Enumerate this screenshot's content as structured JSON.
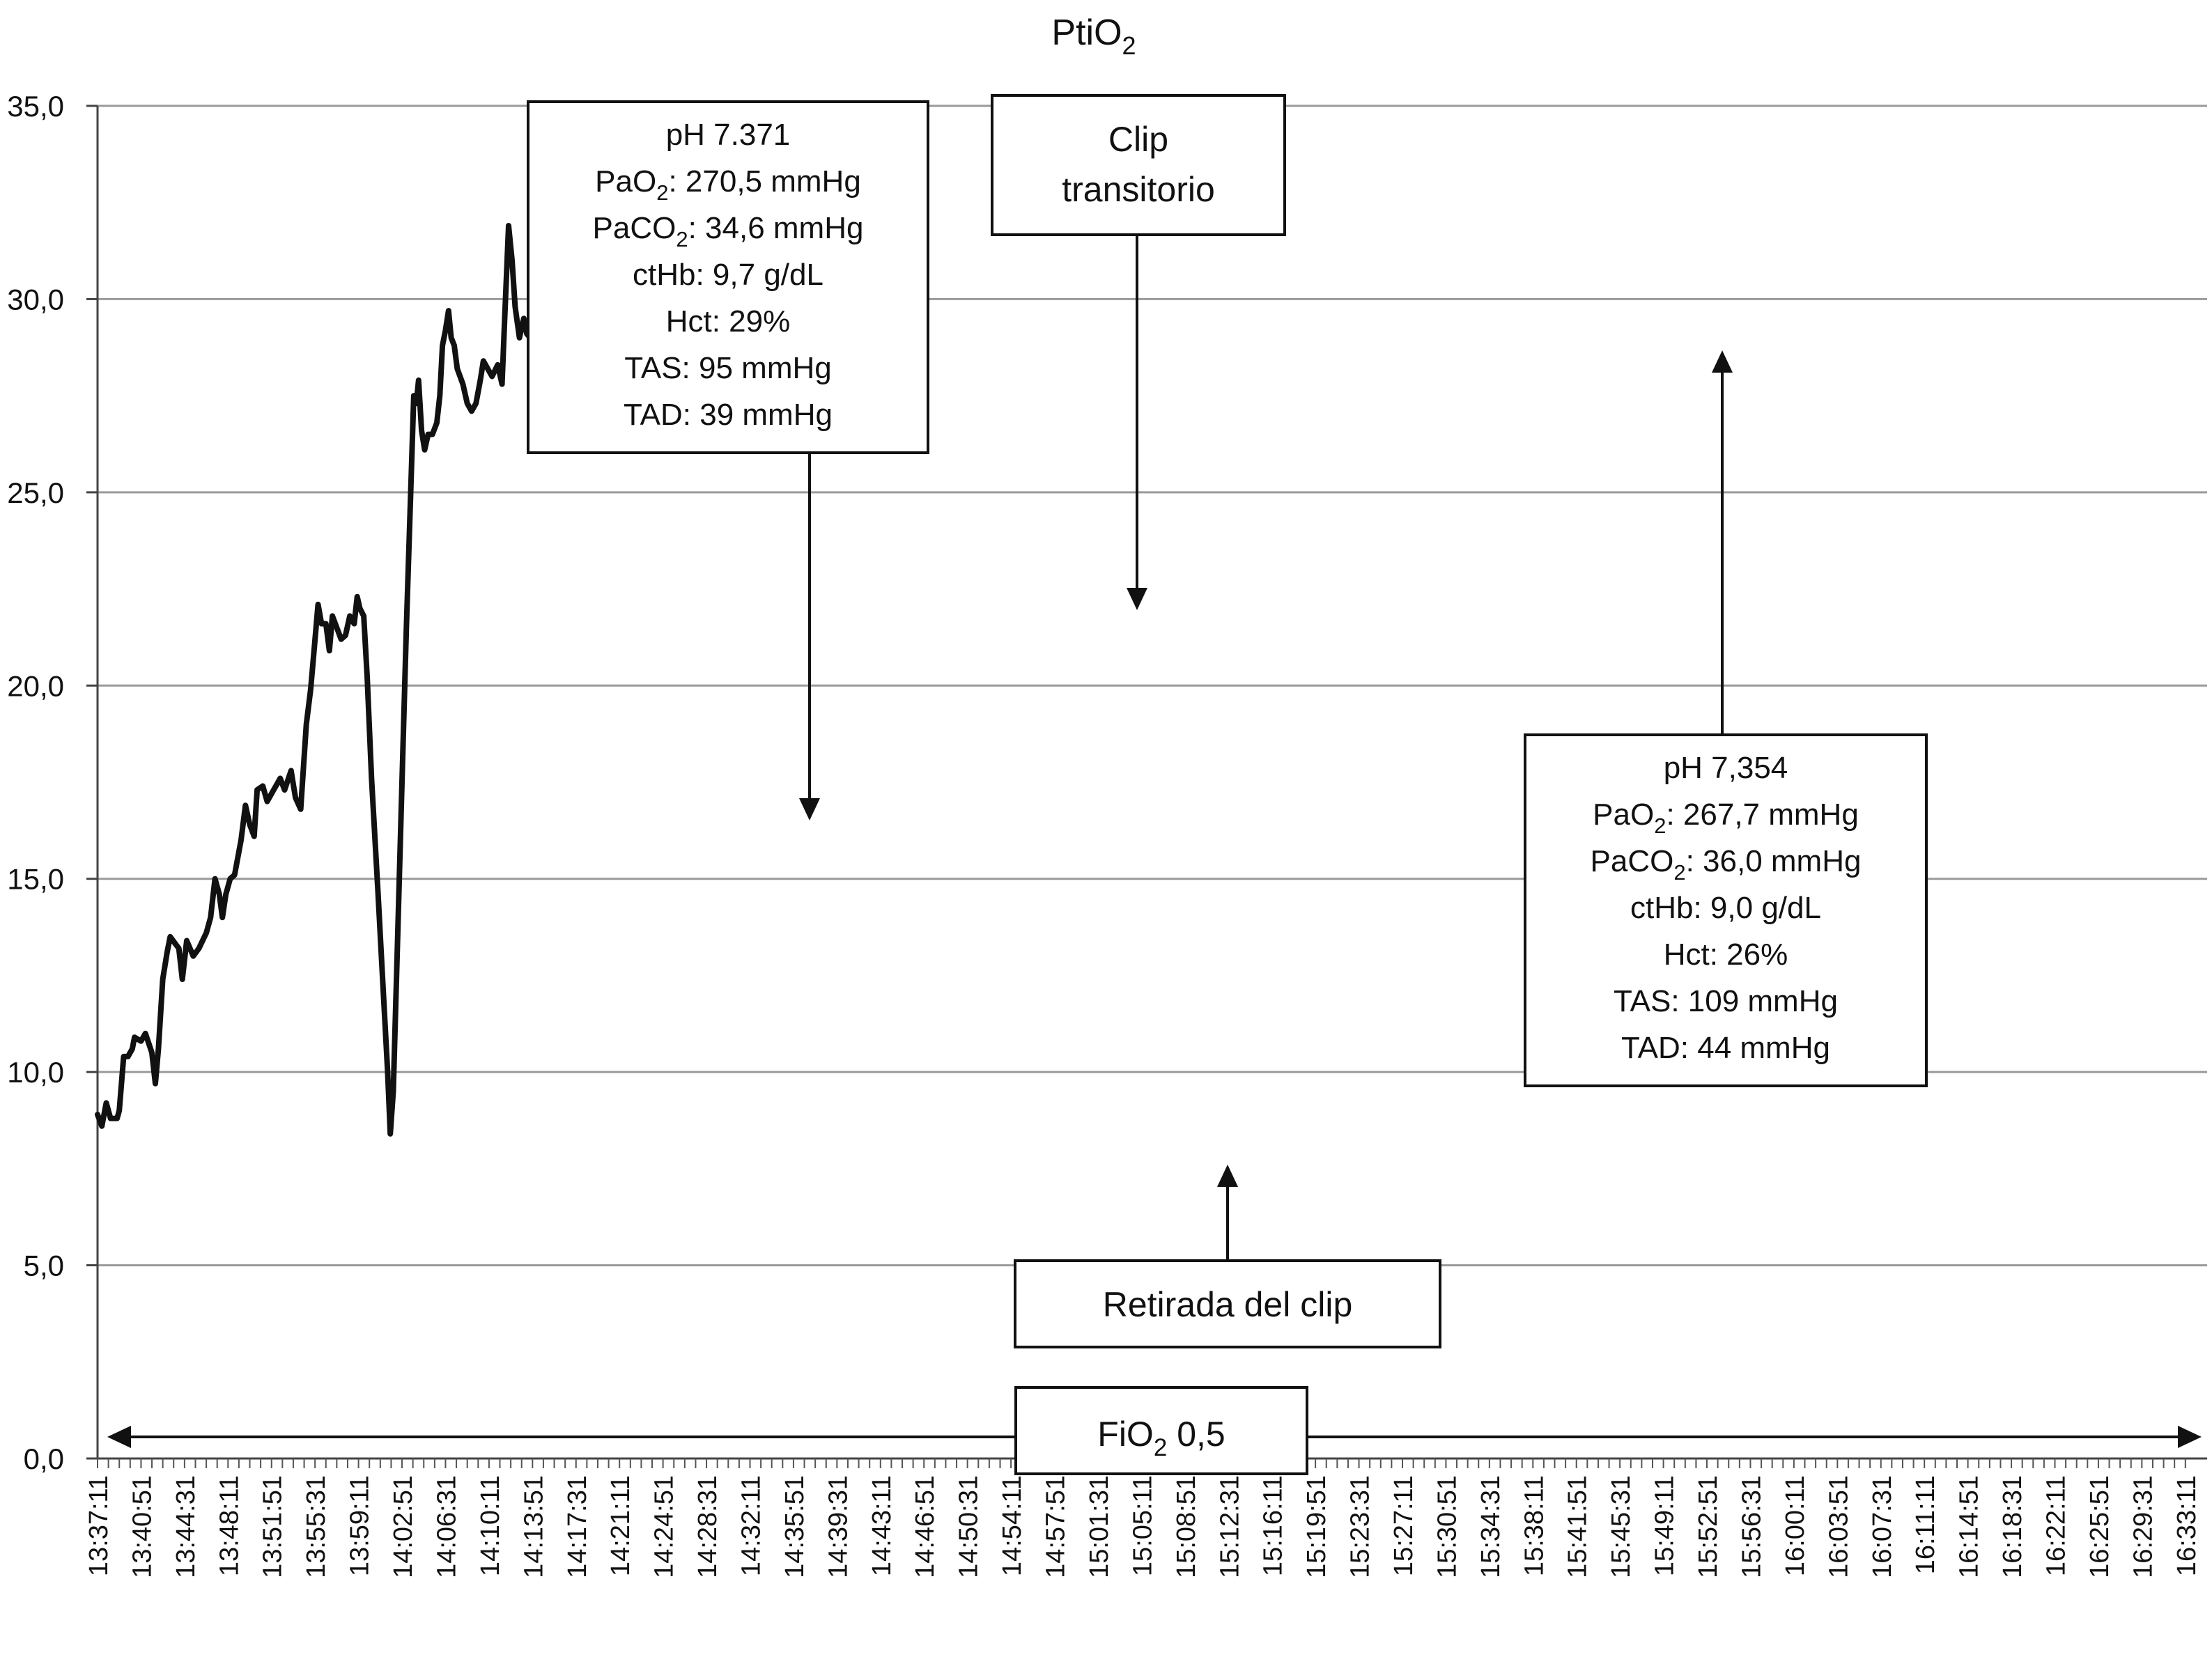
{
  "chart_data": {
    "type": "line",
    "title_main": "PtiO",
    "title_sub": "2",
    "ylim": [
      0,
      35
    ],
    "y_ticks": [
      "0,0",
      "5,0",
      "10,0",
      "15,0",
      "20,0",
      "25,0",
      "30,0",
      "35,0"
    ],
    "y_tick_values": [
      0,
      5,
      10,
      15,
      20,
      25,
      30,
      35
    ],
    "grid": true,
    "x_ticks": [
      "13:37:11",
      "13:40:51",
      "13:44:31",
      "13:48:11",
      "13:51:51",
      "13:55:31",
      "13:59:11",
      "14:02:51",
      "14:06:31",
      "14:10:11",
      "14:13:51",
      "14:17:31",
      "14:21:11",
      "14:24:51",
      "14:28:31",
      "14:32:11",
      "14:35:51",
      "14:39:31",
      "14:43:11",
      "14:46:51",
      "14:50:31",
      "14:54:11",
      "14:57:51",
      "15:01:31",
      "15:05:11",
      "15:08:51",
      "15:12:31",
      "15:16:11",
      "15:19:51",
      "15:23:31",
      "15:27:11",
      "15:30:51",
      "15:34:31",
      "15:38:11",
      "15:41:51",
      "15:45:31",
      "15:49:11",
      "15:52:51",
      "15:56:31",
      "16:00:11",
      "16:03:51",
      "16:07:31",
      "16:11:11",
      "16:14:51",
      "16:18:31",
      "16:22:11",
      "16:25:51",
      "16:29:31",
      "16:33:11"
    ],
    "series": [
      {
        "values": [
          [
            0,
            8.9
          ],
          [
            0.1,
            8.6
          ],
          [
            0.2,
            9.2
          ],
          [
            0.3,
            8.8
          ],
          [
            0.45,
            8.8
          ],
          [
            0.5,
            9.0
          ],
          [
            0.6,
            10.4
          ],
          [
            0.7,
            10.4
          ],
          [
            0.8,
            10.6
          ],
          [
            0.85,
            10.9
          ],
          [
            1.0,
            10.8
          ],
          [
            1.1,
            11.0
          ],
          [
            1.25,
            10.5
          ],
          [
            1.33,
            9.7
          ],
          [
            1.4,
            10.6
          ],
          [
            1.5,
            12.4
          ],
          [
            1.6,
            13.1
          ],
          [
            1.67,
            13.5
          ],
          [
            1.8,
            13.3
          ],
          [
            1.87,
            13.2
          ],
          [
            1.95,
            12.4
          ],
          [
            2.05,
            13.4
          ],
          [
            2.2,
            13.0
          ],
          [
            2.33,
            13.2
          ],
          [
            2.5,
            13.6
          ],
          [
            2.6,
            14.0
          ],
          [
            2.7,
            15.0
          ],
          [
            2.8,
            14.6
          ],
          [
            2.87,
            14.0
          ],
          [
            2.95,
            14.6
          ],
          [
            3.05,
            15.0
          ],
          [
            3.15,
            15.1
          ],
          [
            3.3,
            16.0
          ],
          [
            3.4,
            16.9
          ],
          [
            3.5,
            16.4
          ],
          [
            3.6,
            16.1
          ],
          [
            3.67,
            17.3
          ],
          [
            3.8,
            17.4
          ],
          [
            3.9,
            17.0
          ],
          [
            4.0,
            17.2
          ],
          [
            4.1,
            17.4
          ],
          [
            4.2,
            17.6
          ],
          [
            4.3,
            17.3
          ],
          [
            4.45,
            17.8
          ],
          [
            4.55,
            17.1
          ],
          [
            4.67,
            16.8
          ],
          [
            4.8,
            19.0
          ],
          [
            4.9,
            19.9
          ],
          [
            5.0,
            21.2
          ],
          [
            5.07,
            22.1
          ],
          [
            5.15,
            21.6
          ],
          [
            5.25,
            21.6
          ],
          [
            5.33,
            20.9
          ],
          [
            5.4,
            21.8
          ],
          [
            5.5,
            21.5
          ],
          [
            5.6,
            21.2
          ],
          [
            5.7,
            21.3
          ],
          [
            5.8,
            21.8
          ],
          [
            5.9,
            21.6
          ],
          [
            5.97,
            22.3
          ],
          [
            6.03,
            22.0
          ],
          [
            6.12,
            21.8
          ],
          [
            6.2,
            20.2
          ],
          [
            6.3,
            17.6
          ],
          [
            6.45,
            14.6
          ],
          [
            6.55,
            12.5
          ],
          [
            6.67,
            10.0
          ],
          [
            6.73,
            8.4
          ],
          [
            6.8,
            9.5
          ],
          [
            6.9,
            13.5
          ],
          [
            7.0,
            17.5
          ],
          [
            7.1,
            21.5
          ],
          [
            7.2,
            25.0
          ],
          [
            7.27,
            27.5
          ],
          [
            7.33,
            27.3
          ],
          [
            7.38,
            27.9
          ],
          [
            7.45,
            26.6
          ],
          [
            7.52,
            26.1
          ],
          [
            7.6,
            26.5
          ],
          [
            7.7,
            26.5
          ],
          [
            7.8,
            26.8
          ],
          [
            7.87,
            27.5
          ],
          [
            7.93,
            28.8
          ],
          [
            8.0,
            29.2
          ],
          [
            8.07,
            29.7
          ],
          [
            8.13,
            29.0
          ],
          [
            8.2,
            28.8
          ],
          [
            8.27,
            28.2
          ],
          [
            8.4,
            27.8
          ],
          [
            8.5,
            27.3
          ],
          [
            8.6,
            27.1
          ],
          [
            8.7,
            27.3
          ],
          [
            8.8,
            27.9
          ],
          [
            8.87,
            28.4
          ],
          [
            8.97,
            28.2
          ],
          [
            9.07,
            28.0
          ],
          [
            9.2,
            28.3
          ],
          [
            9.3,
            27.8
          ],
          [
            9.36,
            29.5
          ],
          [
            9.45,
            31.9
          ],
          [
            9.53,
            31.0
          ],
          [
            9.6,
            29.8
          ],
          [
            9.7,
            29.0
          ],
          [
            9.8,
            29.5
          ],
          [
            9.87,
            29.1
          ],
          [
            9.95,
            29.0
          ],
          [
            10.07,
            28.4
          ],
          [
            10.15,
            29.0
          ],
          [
            10.25,
            29.5
          ],
          [
            10.35,
            29.8
          ],
          [
            10.47,
            30.1
          ],
          [
            10.55,
            29.6
          ],
          [
            10.65,
            29.5
          ],
          [
            10.73,
            29.1
          ],
          [
            10.8,
            28.8
          ],
          [
            10.9,
            29.2
          ],
          [
            11.0,
            29.2
          ],
          [
            11.1,
            29.0
          ],
          [
            11.2,
            28.8
          ],
          [
            11.27,
            28.6
          ],
          [
            11.4,
            28.6
          ],
          [
            11.5,
            28.7
          ],
          [
            11.6,
            29.8
          ],
          [
            11.73,
            30.9
          ],
          [
            11.8,
            30.8
          ],
          [
            11.87,
            30.0
          ],
          [
            11.93,
            30.0
          ],
          [
            12.0,
            29.5
          ],
          [
            12.07,
            28.5
          ],
          [
            12.13,
            28.8
          ],
          [
            12.2,
            29.9
          ],
          [
            12.3,
            30.5
          ],
          [
            12.37,
            29.8
          ],
          [
            12.47,
            29.5
          ],
          [
            12.55,
            29.8
          ],
          [
            12.63,
            31.2
          ],
          [
            12.7,
            30.6
          ],
          [
            12.8,
            31.3
          ],
          [
            12.87,
            30.6
          ],
          [
            12.97,
            31.0
          ],
          [
            13.07,
            31.5
          ],
          [
            13.15,
            31.0
          ],
          [
            13.25,
            31.8
          ],
          [
            13.35,
            31.1
          ],
          [
            13.43,
            31.5
          ],
          [
            13.52,
            30.3
          ],
          [
            13.6,
            30.3
          ]
        ]
      }
    ],
    "annotations": [
      {
        "lines": [
          {
            "text": "pH 7.371"
          },
          {
            "pre": "PaO",
            "sub": "2",
            "post": ": 270,5 mmHg"
          },
          {
            "pre": "PaCO",
            "sub": "2",
            "post": ": 34,6 mmHg"
          },
          {
            "text": "ctHb: 9,7 g/dL"
          },
          {
            "text": "Hct: 29%"
          },
          {
            "text": "TAS: 95 mmHg"
          },
          {
            "text": "TAD: 39 mmHg"
          }
        ]
      },
      {
        "lines": [
          {
            "text": "Clip"
          },
          {
            "text": "transitorio"
          }
        ]
      },
      {
        "lines": [
          {
            "text": "Retirada del clip"
          }
        ]
      },
      {
        "lines": [
          {
            "text": "pH 7,354"
          },
          {
            "pre": "PaO",
            "sub": "2",
            "post": ": 267,7 mmHg"
          },
          {
            "pre": "PaCO",
            "sub": "2",
            "post": ": 36,0 mmHg"
          },
          {
            "text": "ctHb: 9,0 g/dL"
          },
          {
            "text": "Hct: 26%"
          },
          {
            "text": "TAS: 109 mmHg"
          },
          {
            "text": "TAD: 44 mmHg"
          }
        ]
      }
    ],
    "fio2_label": {
      "pre": "FiO",
      "sub": "2",
      "post": " 0,5"
    }
  }
}
